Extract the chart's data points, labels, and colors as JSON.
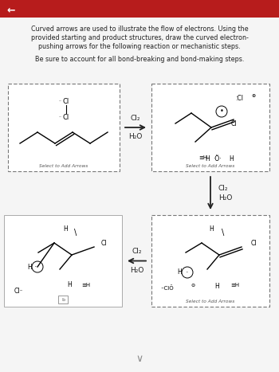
{
  "bg_color": "#eeeeee",
  "header_color": "#b71c1c",
  "page_bg": "#f5f5f5",
  "title_lines": [
    "Curved arrows are used to illustrate the flow of electrons. Using the",
    "provided starting and product structures, draw the curved electron-",
    "pushing arrows for the following reaction or mechanistic steps."
  ],
  "subtitle": "Be sure to account for all bond-breaking and bond-making steps.",
  "box_dash_color": "#777777",
  "box_fill": "#ffffff",
  "label_select": "Select to Add Arrows",
  "lbl_cl2": "Cl₂",
  "lbl_h2o": "H₂O",
  "text_color": "#222222",
  "arrow_color": "#222222"
}
